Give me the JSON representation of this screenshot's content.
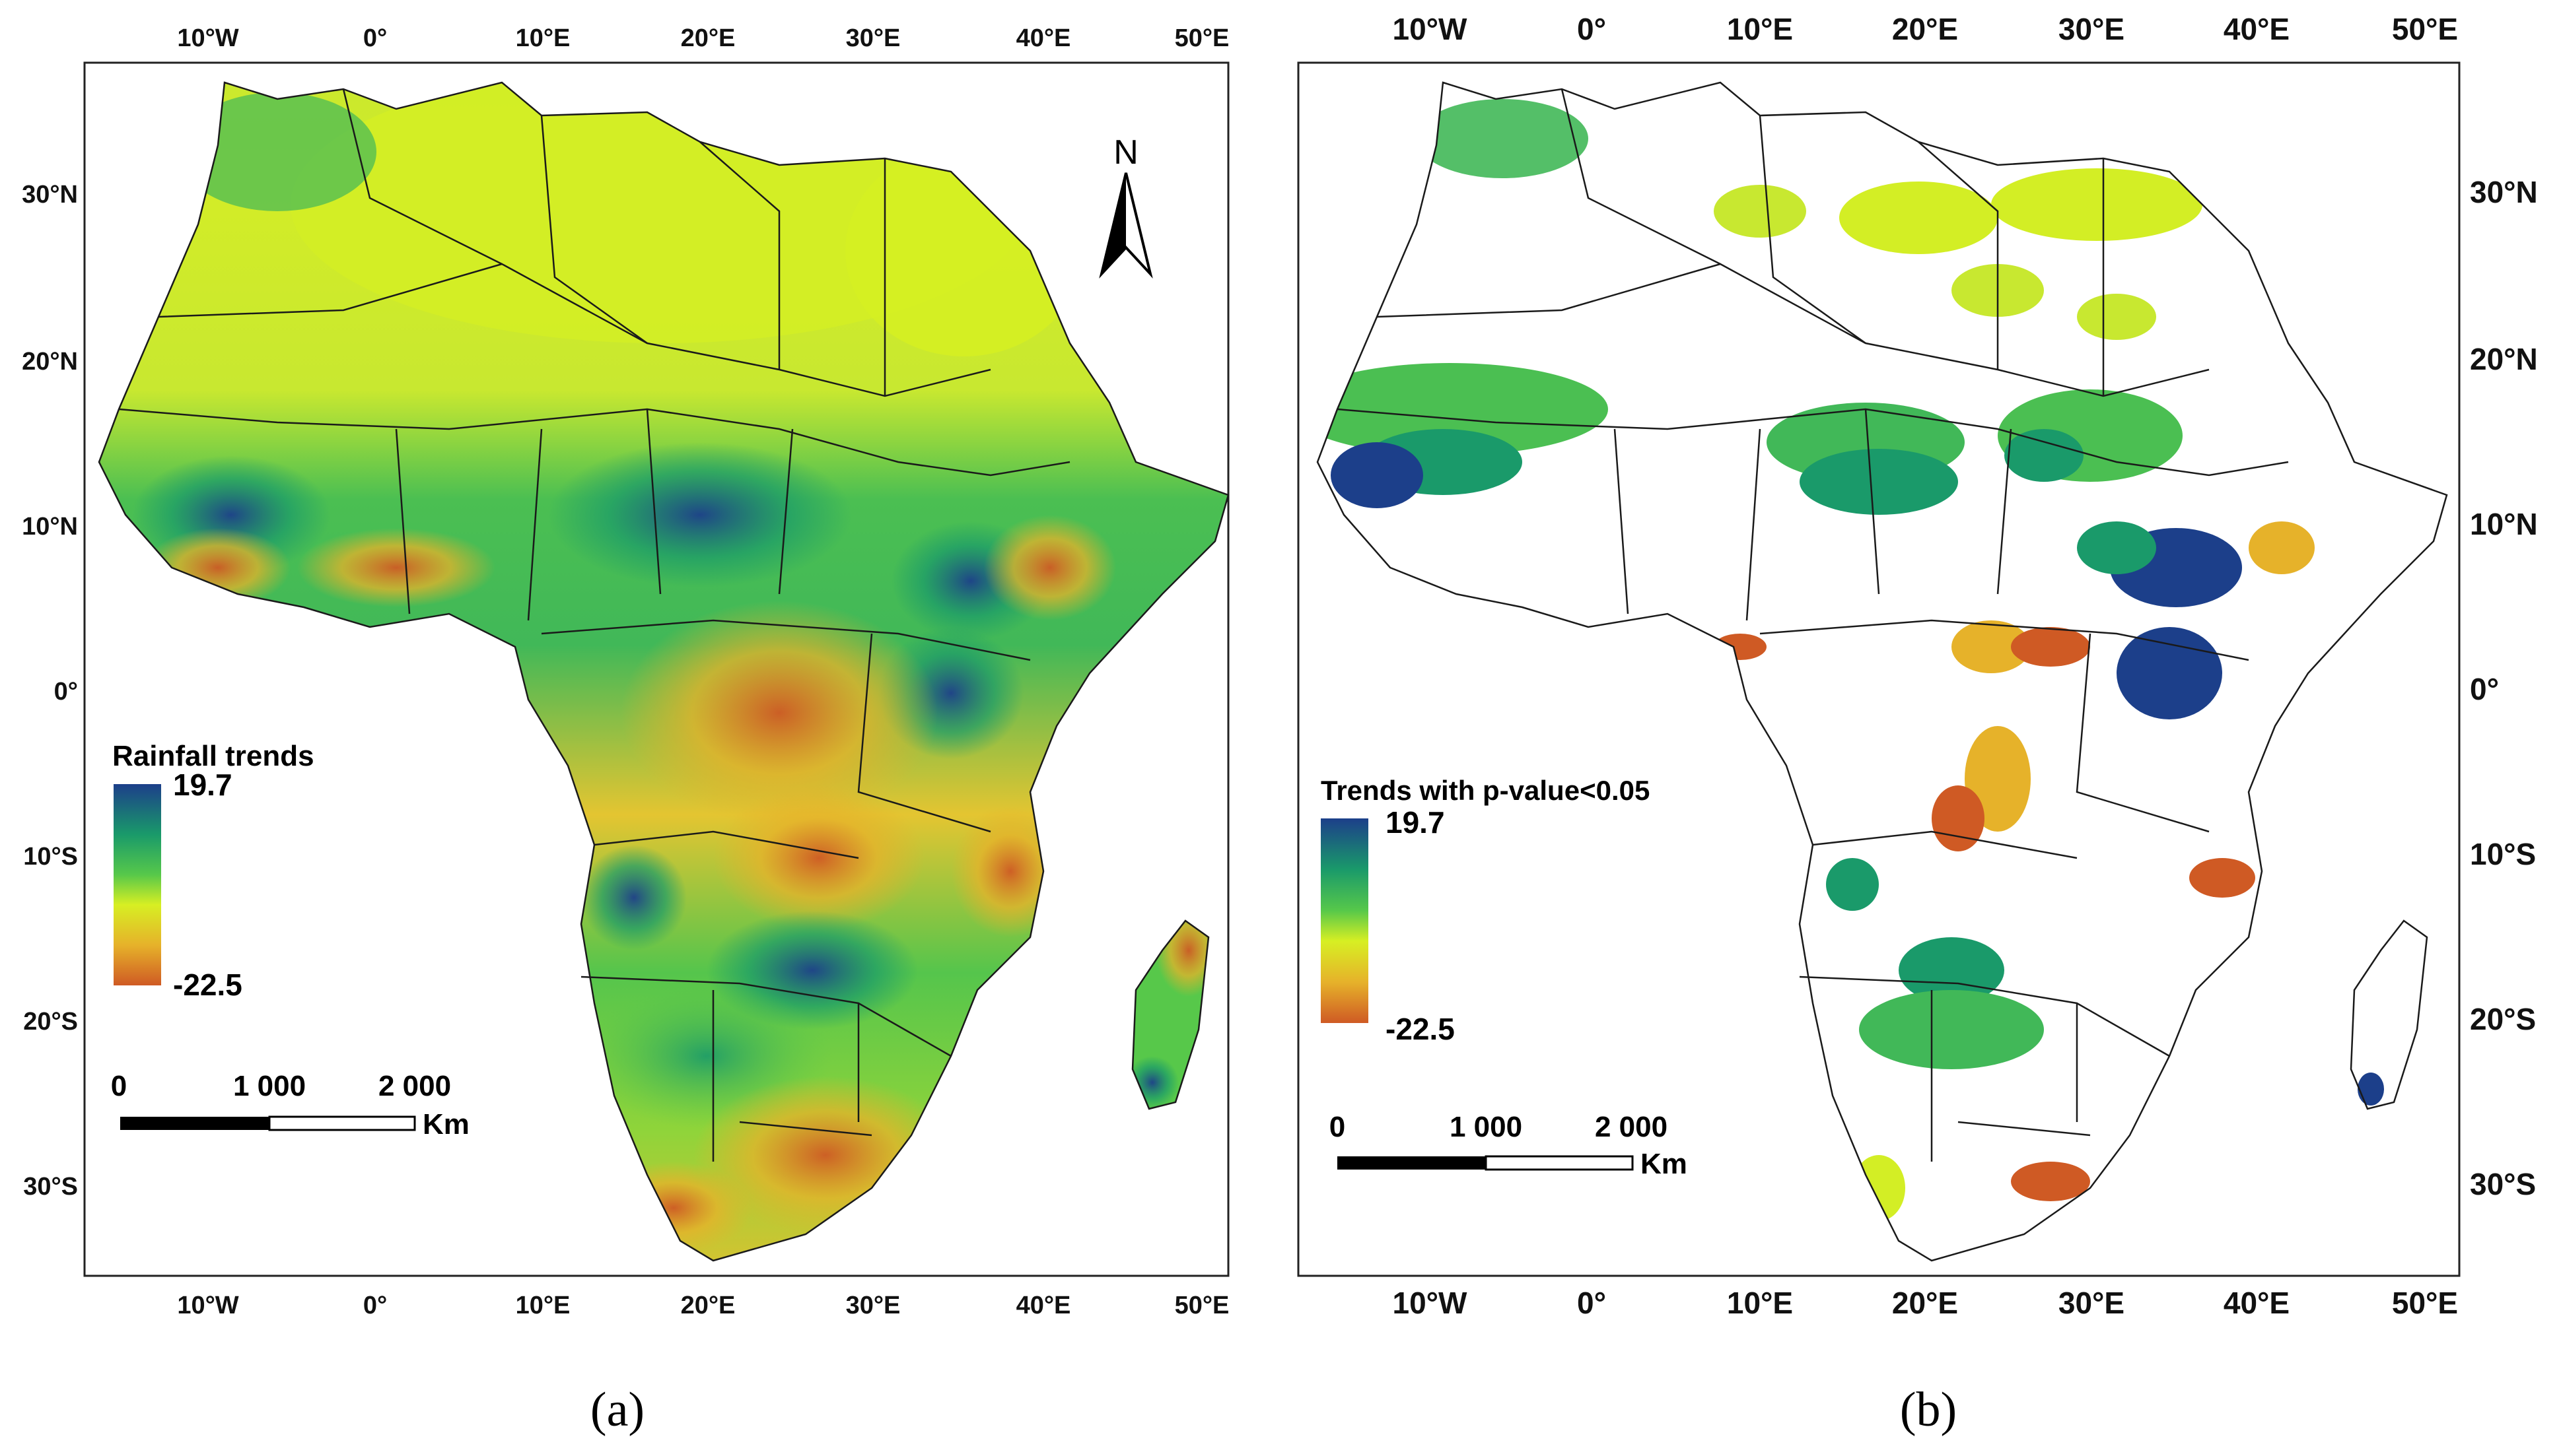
{
  "colors": {
    "high": "#1c3f8a",
    "mid_high": "#1a9a6a",
    "mid": "#57c84a",
    "neutral": "#d7ef23",
    "low_mid": "#e6b22a",
    "low": "#cf5a24",
    "border": "#1a1a1a"
  },
  "panels": [
    {
      "id": "a",
      "caption": "(a)",
      "legend": {
        "title": "Rainfall trends",
        "max_label": "19.7",
        "min_label": "-22.5",
        "max": 19.7,
        "min": -22.5
      },
      "north_label": "N",
      "scale": {
        "labels": [
          "0",
          "1 000",
          "2 000"
        ],
        "unit": "Km"
      },
      "x_ticks": [
        "10°W",
        "0°",
        "10°E",
        "20°E",
        "30°E",
        "40°E",
        "50°E"
      ],
      "y_ticks": [
        "30°N",
        "20°N",
        "10°N",
        "0°",
        "10°S",
        "20°S",
        "30°S"
      ],
      "shading": "continuous"
    },
    {
      "id": "b",
      "caption": "(b)",
      "legend": {
        "title": "Trends with p-value<0.05",
        "max_label": "19.7",
        "min_label": "-22.5",
        "max": 19.7,
        "min": -22.5
      },
      "scale": {
        "labels": [
          "0",
          "1 000",
          "2 000"
        ],
        "unit": "Km"
      },
      "x_ticks": [
        "10°W",
        "0°",
        "10°E",
        "20°E",
        "30°E",
        "40°E",
        "50°E"
      ],
      "y_ticks": [
        "30°N",
        "20°N",
        "10°N",
        "0°",
        "10°S",
        "20°S",
        "30°S"
      ],
      "shading": "significant-only"
    }
  ]
}
